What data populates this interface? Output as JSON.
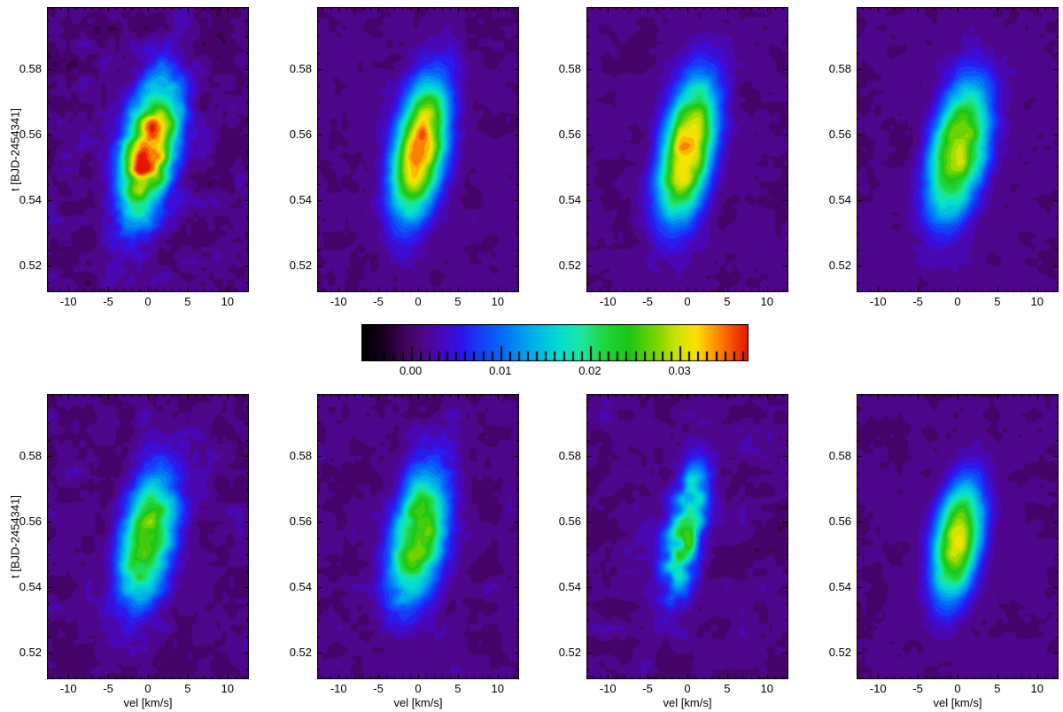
{
  "figure": {
    "background_color": "#ffffff",
    "y_axis_title": "t [BJD-2454341]",
    "x_axis_title": "vel [km/s]"
  },
  "chart_data": {
    "type": "heatmap",
    "title": "",
    "subtitle": "",
    "xlabel": "vel [km/s]",
    "ylabel": "t [BJD-2454341]",
    "grid": {
      "rows": 2,
      "cols": 4
    },
    "x_range": [
      -12.7,
      12.7
    ],
    "y_range": [
      0.512,
      0.599
    ],
    "x_ticks": {
      "values": [
        -10,
        -5,
        0,
        5,
        10
      ],
      "labels": [
        "-10",
        "-5",
        "0",
        "5",
        "10"
      ],
      "minor_step": 1
    },
    "y_ticks": {
      "values": [
        0.58,
        0.56,
        0.54,
        0.52
      ],
      "labels": [
        "0.58",
        "0.56",
        "0.54",
        "0.52"
      ],
      "minor_step": 0.005
    },
    "colorbar": {
      "labels": [
        "0.00",
        "0.01",
        "0.02",
        "0.03"
      ],
      "values": [
        0,
        0.01,
        0.02,
        0.03
      ],
      "range": [
        -0.0055,
        0.0377
      ],
      "minor_step": 0.001
    },
    "contour_step": 0.0015,
    "background_level": 0.001,
    "colormap_stops": [
      [
        0.0,
        "#000000"
      ],
      [
        0.055,
        "#16001f"
      ],
      [
        0.115,
        "#43045e"
      ],
      [
        0.165,
        "#4e068e"
      ],
      [
        0.21,
        "#4708c0"
      ],
      [
        0.26,
        "#2d16ee"
      ],
      [
        0.315,
        "#1244fa"
      ],
      [
        0.38,
        "#007af6"
      ],
      [
        0.445,
        "#00b2e8"
      ],
      [
        0.51,
        "#00ded2"
      ],
      [
        0.565,
        "#1ce8a2"
      ],
      [
        0.625,
        "#20d83e"
      ],
      [
        0.69,
        "#1cc616"
      ],
      [
        0.755,
        "#72d400"
      ],
      [
        0.815,
        "#cce400"
      ],
      [
        0.865,
        "#ffe000"
      ],
      [
        0.91,
        "#ff9a00"
      ],
      [
        0.955,
        "#f85200"
      ],
      [
        1.0,
        "#e21600"
      ]
    ],
    "panels": [
      {
        "id": "top-1",
        "row": 0,
        "col": 0,
        "peak": 0.037,
        "center_t": 0.5555,
        "center_vel": 0.2,
        "sigma_vel": 2.45,
        "sigma_t": 0.0155,
        "tilt": 70,
        "noise": 0.0024,
        "texture": 0.15,
        "seed": 101
      },
      {
        "id": "top-2",
        "row": 0,
        "col": 1,
        "peak": 0.0345,
        "center_t": 0.5555,
        "center_vel": 0.2,
        "sigma_vel": 2.4,
        "sigma_t": 0.0155,
        "tilt": 70,
        "noise": 0.0013,
        "texture": 0.08,
        "seed": 202
      },
      {
        "id": "top-3",
        "row": 0,
        "col": 2,
        "peak": 0.0332,
        "center_t": 0.5555,
        "center_vel": 0.0,
        "sigma_vel": 2.4,
        "sigma_t": 0.0158,
        "tilt": 70,
        "noise": 0.0012,
        "texture": 0.08,
        "seed": 303
      },
      {
        "id": "top-4",
        "row": 0,
        "col": 3,
        "peak": 0.0285,
        "center_t": 0.5555,
        "center_vel": 0.2,
        "sigma_vel": 2.6,
        "sigma_t": 0.0158,
        "tilt": 70,
        "noise": 0.0013,
        "texture": 0.08,
        "seed": 404
      },
      {
        "id": "bottom-1",
        "row": 1,
        "col": 0,
        "peak": 0.0248,
        "center_t": 0.5555,
        "center_vel": 0.0,
        "sigma_vel": 2.5,
        "sigma_t": 0.0152,
        "tilt": 70,
        "noise": 0.0019,
        "texture": 0.14,
        "seed": 505
      },
      {
        "id": "bottom-2",
        "row": 1,
        "col": 1,
        "peak": 0.026,
        "center_t": 0.5555,
        "center_vel": 0.0,
        "sigma_vel": 2.5,
        "sigma_t": 0.0155,
        "tilt": 70,
        "noise": 0.0017,
        "texture": 0.14,
        "seed": 606
      },
      {
        "id": "bottom-3",
        "row": 1,
        "col": 2,
        "peak": 0.0195,
        "center_t": 0.557,
        "center_vel": -0.3,
        "sigma_vel": 1.75,
        "sigma_t": 0.0148,
        "tilt": 70,
        "noise": 0.0019,
        "texture": 0.45,
        "seed": 707
      },
      {
        "id": "bottom-4",
        "row": 1,
        "col": 3,
        "peak": 0.03,
        "center_t": 0.554,
        "center_vel": 0.0,
        "sigma_vel": 2.2,
        "sigma_t": 0.0132,
        "tilt": 60,
        "noise": 0.0009,
        "texture": 0.06,
        "seed": 808
      }
    ]
  }
}
